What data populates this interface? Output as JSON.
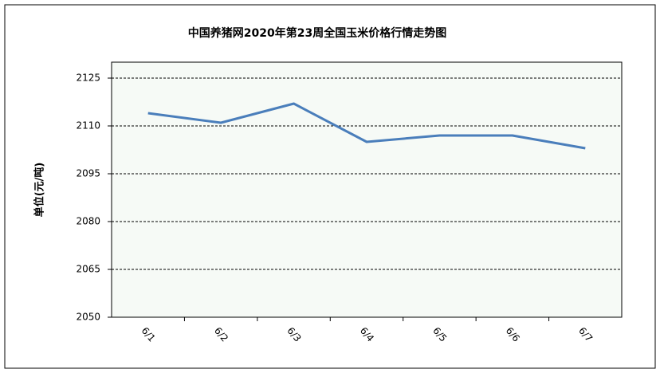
{
  "chart_data": {
    "type": "line",
    "title": "中国养猪网2020年第23周全国玉米价格行情走势图",
    "y_label": "单位(元/吨)",
    "categories": [
      "6/1",
      "6/2",
      "6/3",
      "6/4",
      "6/5",
      "6/6",
      "6/7"
    ],
    "values": [
      2114,
      2111,
      2117,
      2105,
      2107,
      2107,
      2103
    ],
    "color": "#4a7ebb",
    "ylim": [
      2050,
      2130
    ],
    "yticks": [
      2050,
      2065,
      2080,
      2095,
      2110,
      2125
    ],
    "grid": true
  }
}
